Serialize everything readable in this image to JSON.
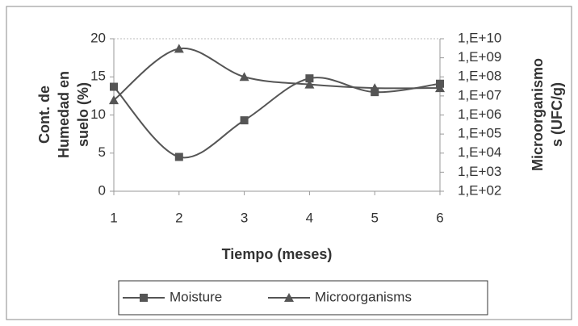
{
  "chart_data": {
    "type": "line",
    "x": [
      1,
      2,
      3,
      4,
      5,
      6
    ],
    "xlim": [
      1,
      6
    ],
    "xticks": [
      1,
      2,
      3,
      4,
      5,
      6
    ],
    "xlabel": "Tiempo (meses)",
    "ylabel": [
      "Cont. de",
      "Humedad en",
      "suelo (%)"
    ],
    "y2label": [
      "Microorganismo",
      "s (UFC/g)"
    ],
    "ylim": [
      0,
      20
    ],
    "yticks": [
      0,
      5,
      10,
      15,
      20
    ],
    "y2lim": [
      100,
      10000000000
    ],
    "y2log": true,
    "y2ticks": [
      {
        "value": 100,
        "label": "1,E+02"
      },
      {
        "value": 1000,
        "label": "1,E+03"
      },
      {
        "value": 10000,
        "label": "1,E+04"
      },
      {
        "value": 100000,
        "label": "1,E+05"
      },
      {
        "value": 1000000,
        "label": "1,E+06"
      },
      {
        "value": 10000000,
        "label": "1,E+07"
      },
      {
        "value": 100000000,
        "label": "1,E+08"
      },
      {
        "value": 1000000000,
        "label": "1,E+09"
      },
      {
        "value": 10000000000,
        "label": "1,E+10"
      }
    ],
    "smooth": true,
    "legend": "bottom",
    "series": [
      {
        "name": "Moisture",
        "color": "#555555",
        "marker": "square",
        "values": [
          13.7,
          4.5,
          9.3,
          14.8,
          13.0,
          14.1
        ]
      },
      {
        "name": "Microorganisms",
        "color": "#555555",
        "marker": "triangle",
        "axis": "y2",
        "values": [
          6000000,
          3000000000,
          100000000,
          40000000,
          26000000,
          26000000
        ]
      }
    ]
  }
}
